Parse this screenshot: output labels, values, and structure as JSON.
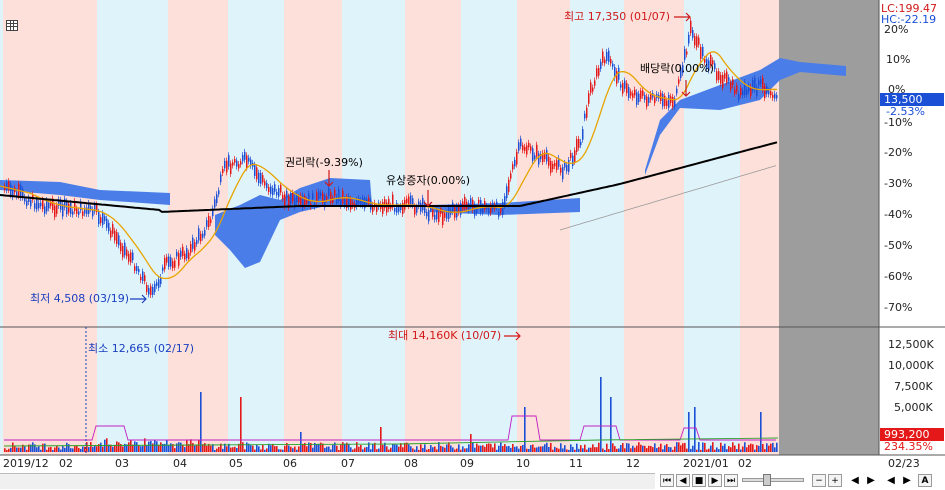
{
  "chart": {
    "price_axis_labels": [
      "20%",
      "10%",
      "0%",
      "-10%",
      "-20%",
      "-30%",
      "-40%",
      "-50%",
      "-60%",
      "-70%"
    ],
    "volume_axis_labels": [
      "12,500K",
      "10,000K",
      "7,500K",
      "5,000K"
    ],
    "lc_label": "LC:199.47",
    "hc_label": "HC:-22.19",
    "current_price": "13,500",
    "current_change": "-2.53%",
    "current_volume": "993,200",
    "current_volume_pct": "234.35%",
    "date_labels": [
      "2019/12",
      "02",
      "03",
      "04",
      "05",
      "06",
      "07",
      "08",
      "09",
      "10",
      "11",
      "12",
      "2021/01",
      "02"
    ],
    "end_date": "02/23",
    "annotations": {
      "high": "최고 17,350 (01/07)",
      "low": "최저 4,508 (03/19)",
      "rights": "권리락(-9.39%)",
      "capital": "유상증자(0.00%)",
      "dividend": "배당락(0.00%)",
      "vol_max": "최대 14,160K (10/07)",
      "vol_min": "최소 12,665 (02/17)"
    },
    "colors": {
      "up": "#e41818",
      "down": "#1a4fd6",
      "cloud": "#4a7de8",
      "ma_long": "#000000",
      "ma_mid": "#e8a400",
      "ma_short": "#c020c0",
      "band_pink": "#fde0da",
      "band_blue": "#dff3fb",
      "future": "#9d9d9d"
    }
  },
  "toolbar": {
    "settings_icon": "grid-icon",
    "nav_buttons": [
      "⏮",
      "◀",
      "■",
      "▶",
      "⏭"
    ],
    "zoom_buttons": [
      "−",
      "+",
      "A"
    ]
  }
}
